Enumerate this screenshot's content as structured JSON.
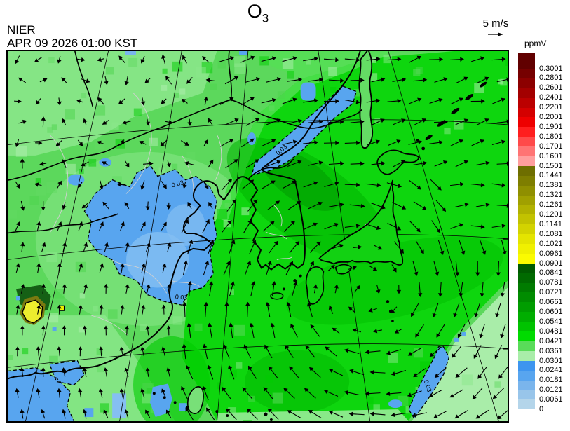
{
  "header": {
    "agency": "NIER",
    "datetime": "APR 09 2026 01:00 KST",
    "title_main": "O",
    "title_sub": "3",
    "wind_ref_label": "5 m/s"
  },
  "colorbar": {
    "unit": "ppmV",
    "segments": [
      {
        "color": "#610000",
        "label": "0.3001"
      },
      {
        "color": "#760000",
        "label": "0.2801"
      },
      {
        "color": "#8c0000",
        "label": "0.2601"
      },
      {
        "color": "#a30000",
        "label": "0.2401"
      },
      {
        "color": "#bb0000",
        "label": "0.2201"
      },
      {
        "color": "#d40000",
        "label": "0.2001"
      },
      {
        "color": "#ee0000",
        "label": "0.1901"
      },
      {
        "color": "#ff1e1e",
        "label": "0.1801"
      },
      {
        "color": "#ff4a4a",
        "label": "0.1701"
      },
      {
        "color": "#ff7474",
        "label": "0.1601"
      },
      {
        "color": "#ff9e9e",
        "label": "0.1501"
      },
      {
        "color": "#6e6e00",
        "label": "0.1441"
      },
      {
        "color": "#7e7e00",
        "label": "0.1381"
      },
      {
        "color": "#8f8f00",
        "label": "0.1321"
      },
      {
        "color": "#a0a000",
        "label": "0.1261"
      },
      {
        "color": "#b1b100",
        "label": "0.1201"
      },
      {
        "color": "#c2c200",
        "label": "0.1141"
      },
      {
        "color": "#d3d300",
        "label": "0.1081"
      },
      {
        "color": "#e4e400",
        "label": "0.1021"
      },
      {
        "color": "#f0f000",
        "label": "0.0961"
      },
      {
        "color": "#fbfb00",
        "label": "0.0901"
      },
      {
        "color": "#005a00",
        "label": "0.0841"
      },
      {
        "color": "#006a00",
        "label": "0.0781"
      },
      {
        "color": "#007b00",
        "label": "0.0721"
      },
      {
        "color": "#008c00",
        "label": "0.0661"
      },
      {
        "color": "#009d00",
        "label": "0.0601"
      },
      {
        "color": "#00ae00",
        "label": "0.0541"
      },
      {
        "color": "#00c300",
        "label": "0.0481"
      },
      {
        "color": "#00db00",
        "label": "0.0421"
      },
      {
        "color": "#59dc59",
        "label": "0.0361"
      },
      {
        "color": "#a9eda9",
        "label": "0.0301"
      },
      {
        "color": "#3e95ef",
        "label": "0.0241"
      },
      {
        "color": "#58a5ef",
        "label": "0.0181"
      },
      {
        "color": "#7ab5ec",
        "label": "0.0121"
      },
      {
        "color": "#98c5ea",
        "label": "0.0061"
      },
      {
        "color": "#b4d5ea",
        "label": "0"
      }
    ]
  },
  "map": {
    "contour_labels": [
      "0.03",
      "0.03",
      "0.03",
      "0.03"
    ]
  }
}
